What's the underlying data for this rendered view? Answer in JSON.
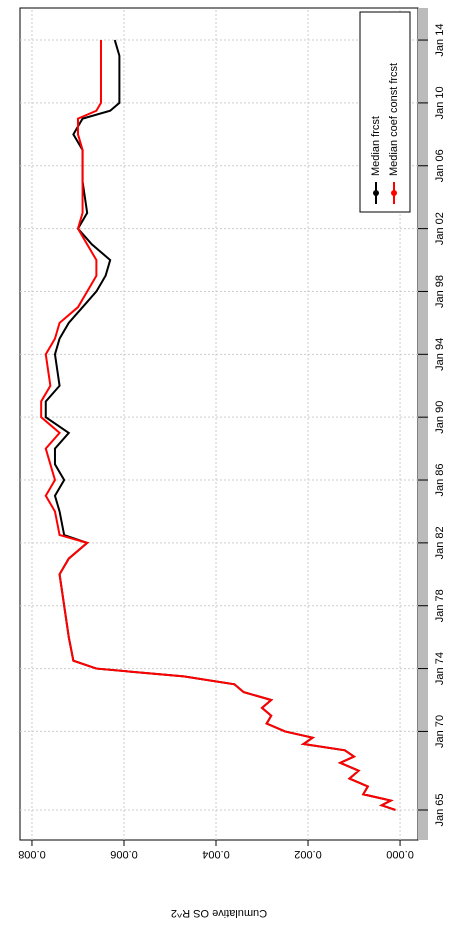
{
  "chart_data": {
    "type": "line",
    "y_label": "Cumulative OS R^2",
    "x": [
      1965,
      1965.3,
      1965.6,
      1966,
      1966.5,
      1967,
      1967.5,
      1968,
      1968.4,
      1968.8,
      1969.2,
      1969.6,
      1970,
      1970.5,
      1971,
      1971.5,
      1972,
      1972.5,
      1973,
      1973.5,
      1974,
      1974.5,
      1976,
      1978,
      1980,
      1981,
      1982,
      1982.5,
      1984,
      1985,
      1986,
      1987,
      1988,
      1989,
      1990,
      1991,
      1992,
      1994,
      1995,
      1996,
      1997,
      1998,
      1999,
      2000,
      2001,
      2002,
      2003,
      2005,
      2007,
      2008,
      2009,
      2009.5,
      2010,
      2012,
      2013,
      2014
    ],
    "series": [
      {
        "name": "Median frcst",
        "color": "#000000",
        "values": [
          0.0001,
          0.0004,
          0.0002,
          0.0008,
          0.0007,
          0.0011,
          0.0009,
          0.0013,
          0.001,
          0.0012,
          0.0021,
          0.0019,
          0.0025,
          0.0029,
          0.0028,
          0.003,
          0.0028,
          0.0034,
          0.0036,
          0.0047,
          0.0066,
          0.0071,
          0.0072,
          0.0073,
          0.0074,
          0.0072,
          0.0068,
          0.0073,
          0.0074,
          0.0075,
          0.0073,
          0.0075,
          0.0075,
          0.0072,
          0.0077,
          0.0077,
          0.0074,
          0.0075,
          0.0074,
          0.0072,
          0.0069,
          0.0066,
          0.0064,
          0.0063,
          0.0067,
          0.007,
          0.0068,
          0.0069,
          0.0069,
          0.0071,
          0.0069,
          0.0063,
          0.0061,
          0.0061,
          0.0061,
          0.0062
        ]
      },
      {
        "name": "Median coef const frcst",
        "color": "#ff0000",
        "values": [
          0.0001,
          0.0004,
          0.0002,
          0.0008,
          0.0007,
          0.0011,
          0.0009,
          0.0013,
          0.001,
          0.0012,
          0.0021,
          0.0019,
          0.0025,
          0.0029,
          0.0028,
          0.003,
          0.0028,
          0.0034,
          0.0036,
          0.0047,
          0.0066,
          0.0071,
          0.0072,
          0.0073,
          0.0074,
          0.0072,
          0.0068,
          0.0074,
          0.0075,
          0.0077,
          0.0075,
          0.0076,
          0.0077,
          0.0074,
          0.0078,
          0.0078,
          0.0076,
          0.0077,
          0.0075,
          0.0074,
          0.007,
          0.0068,
          0.0066,
          0.0066,
          0.0068,
          0.007,
          0.0069,
          0.0069,
          0.0069,
          0.007,
          0.007,
          0.0066,
          0.0065,
          0.0065,
          0.0065,
          0.0065
        ]
      }
    ],
    "xlim": [
      1963.09,
      2016.04
    ],
    "xticks": [
      {
        "value": 1965,
        "label": "Jan 65"
      },
      {
        "value": 1970,
        "label": "Jan 70"
      },
      {
        "value": 1974,
        "label": "Jan 74"
      },
      {
        "value": 1978,
        "label": "Jan 78"
      },
      {
        "value": 1982,
        "label": "Jan 82"
      },
      {
        "value": 1986,
        "label": "Jan 86"
      },
      {
        "value": 1990,
        "label": "Jan 90"
      },
      {
        "value": 1994,
        "label": "Jan 94"
      },
      {
        "value": 1998,
        "label": "Jan 98"
      },
      {
        "value": 2002,
        "label": "Jan 02"
      },
      {
        "value": 2006,
        "label": "Jan 06"
      },
      {
        "value": 2010,
        "label": "Jan 10"
      },
      {
        "value": 2014,
        "label": "Jan 14"
      }
    ],
    "ylim": [
      -0.00039,
      0.00826
    ],
    "yticks": [
      {
        "value": 0,
        "label": "0.000"
      },
      {
        "value": 0.002,
        "label": "0.002"
      },
      {
        "value": 0.004,
        "label": "0.004"
      },
      {
        "value": 0.006,
        "label": "0.006"
      },
      {
        "value": 0.008,
        "label": "0.008"
      }
    ],
    "grid": true,
    "legend": "bottom-right"
  }
}
